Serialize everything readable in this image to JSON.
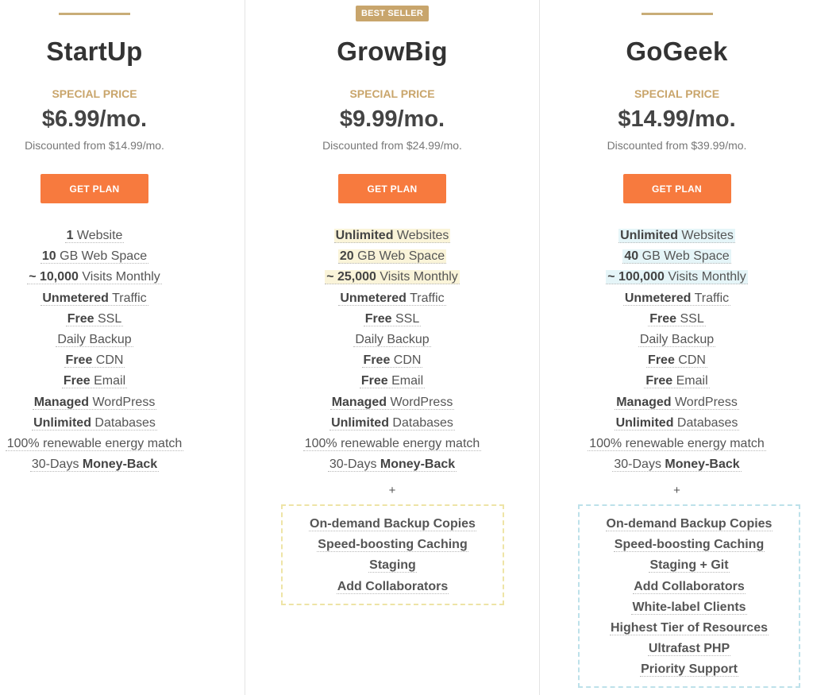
{
  "plans": [
    {
      "name": "StartUp",
      "special_label": "SPECIAL PRICE",
      "price": "$6.99/mo.",
      "discount": "Discounted from $14.99/mo.",
      "cta": "GET PLAN",
      "features": [
        {
          "bold": "1",
          "text": " Website"
        },
        {
          "bold": "10",
          "text": " GB Web Space"
        },
        {
          "bold": "~ 10,000",
          "text": " Visits Monthly"
        },
        {
          "bold": "Unmetered",
          "text": " Traffic"
        },
        {
          "bold": "Free",
          "text": " SSL"
        },
        {
          "bold": "",
          "text": "Daily Backup"
        },
        {
          "bold": "Free",
          "text": " CDN"
        },
        {
          "bold": "Free",
          "text": " Email"
        },
        {
          "bold": "Managed",
          "text": " WordPress"
        },
        {
          "bold": "Unlimited",
          "text": " Databases"
        },
        {
          "bold": "",
          "text": "100% renewable energy match"
        },
        {
          "pre": "30-Days ",
          "bold": "Money-Back",
          "text": ""
        }
      ]
    },
    {
      "name": "GrowBig",
      "badge": "BEST SELLER",
      "special_label": "SPECIAL PRICE",
      "price": "$9.99/mo.",
      "discount": "Discounted from $24.99/mo.",
      "cta": "GET PLAN",
      "features": [
        {
          "bold": "Unlimited",
          "text": " Websites"
        },
        {
          "bold": "20",
          "text": " GB Web Space"
        },
        {
          "bold": "~ 25,000",
          "text": " Visits Monthly"
        },
        {
          "bold": "Unmetered",
          "text": " Traffic"
        },
        {
          "bold": "Free",
          "text": " SSL"
        },
        {
          "bold": "",
          "text": "Daily Backup"
        },
        {
          "bold": "Free",
          "text": " CDN"
        },
        {
          "bold": "Free",
          "text": " Email"
        },
        {
          "bold": "Managed",
          "text": " WordPress"
        },
        {
          "bold": "Unlimited",
          "text": " Databases"
        },
        {
          "bold": "",
          "text": "100% renewable energy match"
        },
        {
          "pre": "30-Days ",
          "bold": "Money-Back",
          "text": ""
        }
      ],
      "plus": "+",
      "extras": [
        "On-demand Backup Copies",
        "Speed-boosting Caching",
        "Staging",
        "Add Collaborators"
      ]
    },
    {
      "name": "GoGeek",
      "special_label": "SPECIAL PRICE",
      "price": "$14.99/mo.",
      "discount": "Discounted from $39.99/mo.",
      "cta": "GET PLAN",
      "features": [
        {
          "bold": "Unlimited",
          "text": " Websites"
        },
        {
          "bold": "40",
          "text": " GB Web Space"
        },
        {
          "bold": "~ 100,000",
          "text": " Visits Monthly"
        },
        {
          "bold": "Unmetered",
          "text": " Traffic"
        },
        {
          "bold": "Free",
          "text": " SSL"
        },
        {
          "bold": "",
          "text": "Daily Backup"
        },
        {
          "bold": "Free",
          "text": " CDN"
        },
        {
          "bold": "Free",
          "text": " Email"
        },
        {
          "bold": "Managed",
          "text": " WordPress"
        },
        {
          "bold": "Unlimited",
          "text": " Databases"
        },
        {
          "bold": "",
          "text": "100% renewable energy match"
        },
        {
          "pre": "30-Days ",
          "bold": "Money-Back",
          "text": ""
        }
      ],
      "plus": "+",
      "extras": [
        "On-demand Backup Copies",
        "Speed-boosting Caching",
        "Staging + Git",
        "Add Collaborators",
        "White-label Clients",
        "Highest Tier of Resources",
        "Ultrafast PHP",
        "Priority Support"
      ]
    }
  ],
  "colors": {
    "accent_gold": "#c9a56b",
    "cta_orange": "#f77a3e",
    "highlight_yellow": "#faf4d9",
    "highlight_blue": "#e5f5f8"
  }
}
